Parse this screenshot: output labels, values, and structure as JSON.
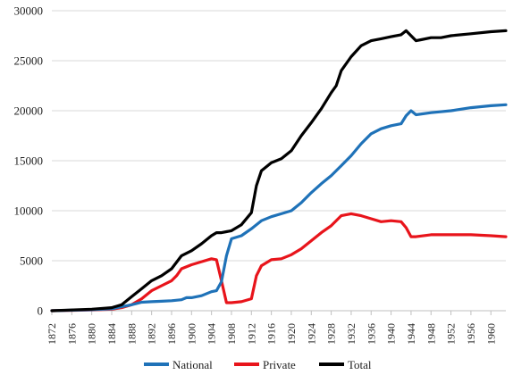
{
  "chart_data": {
    "type": "line",
    "title": "",
    "xlabel": "",
    "ylabel": "",
    "xlim": [
      1872,
      1963
    ],
    "ylim": [
      0,
      30000
    ],
    "grid": "horizontal",
    "legend_position": "bottom",
    "y_ticks": [
      0,
      5000,
      10000,
      15000,
      20000,
      25000,
      30000
    ],
    "y_tick_labels": [
      "0",
      "5000",
      "10000",
      "15000",
      "20000",
      "25000",
      "30000"
    ],
    "x_ticks": [
      1872,
      1876,
      1880,
      1884,
      1888,
      1892,
      1896,
      1900,
      1904,
      1908,
      1912,
      1916,
      1920,
      1924,
      1928,
      1932,
      1936,
      1940,
      1944,
      1948,
      1952,
      1956,
      1960
    ],
    "x_tick_labels": [
      "1872",
      "1876",
      "1880",
      "1884",
      "1888",
      "1892",
      "1896",
      "1900",
      "1904",
      "1908",
      "1912",
      "1916",
      "1920",
      "1924",
      "1928",
      "1932",
      "1936",
      "1940",
      "1944",
      "1948",
      "1952",
      "1956",
      "1960"
    ],
    "series": [
      {
        "name": "National",
        "color": "#1f72b8",
        "x": [
          1872,
          1880,
          1884,
          1888,
          1890,
          1892,
          1894,
          1896,
          1898,
          1899,
          1900,
          1902,
          1904,
          1905,
          1906,
          1907,
          1908,
          1910,
          1912,
          1914,
          1916,
          1918,
          1920,
          1922,
          1924,
          1926,
          1928,
          1930,
          1932,
          1934,
          1936,
          1938,
          1940,
          1942,
          1943,
          1944,
          1945,
          1948,
          1952,
          1956,
          1960,
          1963
        ],
        "values": [
          0,
          100,
          200,
          600,
          850,
          900,
          950,
          1000,
          1100,
          1300,
          1300,
          1500,
          1900,
          2000,
          2900,
          5500,
          7200,
          7500,
          8200,
          9000,
          9400,
          9700,
          10000,
          10800,
          11800,
          12700,
          13500,
          14500,
          15500,
          16700,
          17700,
          18200,
          18500,
          18700,
          19500,
          20000,
          19600,
          19800,
          20000,
          20300,
          20500,
          20600
        ]
      },
      {
        "name": "Private",
        "color": "#e8141b",
        "x": [
          1872,
          1880,
          1884,
          1886,
          1888,
          1890,
          1892,
          1894,
          1896,
          1897,
          1898,
          1900,
          1902,
          1904,
          1905,
          1906,
          1907,
          1908,
          1910,
          1912,
          1913,
          1914,
          1916,
          1918,
          1920,
          1922,
          1924,
          1926,
          1928,
          1930,
          1932,
          1934,
          1936,
          1938,
          1940,
          1942,
          1943,
          1944,
          1945,
          1948,
          1952,
          1956,
          1960,
          1963
        ],
        "values": [
          0,
          80,
          150,
          300,
          600,
          1200,
          2000,
          2500,
          3000,
          3500,
          4200,
          4600,
          4900,
          5200,
          5100,
          3000,
          800,
          800,
          900,
          1200,
          3500,
          4500,
          5100,
          5200,
          5600,
          6200,
          7000,
          7800,
          8500,
          9500,
          9700,
          9500,
          9200,
          8900,
          9000,
          8900,
          8300,
          7400,
          7400,
          7600,
          7600,
          7600,
          7500,
          7400
        ]
      },
      {
        "name": "Total",
        "color": "#000000",
        "x": [
          1872,
          1880,
          1884,
          1886,
          1888,
          1890,
          1892,
          1894,
          1896,
          1898,
          1900,
          1902,
          1904,
          1905,
          1906,
          1908,
          1910,
          1912,
          1913,
          1914,
          1916,
          1918,
          1920,
          1922,
          1924,
          1926,
          1928,
          1929,
          1930,
          1932,
          1934,
          1936,
          1938,
          1940,
          1942,
          1943,
          1944,
          1945,
          1946,
          1948,
          1950,
          1952,
          1956,
          1960,
          1963
        ],
        "values": [
          0,
          150,
          300,
          600,
          1400,
          2200,
          3000,
          3500,
          4200,
          5500,
          6000,
          6700,
          7500,
          7800,
          7800,
          8000,
          8600,
          9800,
          12500,
          14000,
          14800,
          15200,
          16000,
          17500,
          18800,
          20200,
          21800,
          22500,
          24000,
          25400,
          26500,
          27000,
          27200,
          27400,
          27600,
          28000,
          27500,
          27000,
          27100,
          27300,
          27300,
          27500,
          27700,
          27900,
          28000
        ]
      }
    ]
  }
}
